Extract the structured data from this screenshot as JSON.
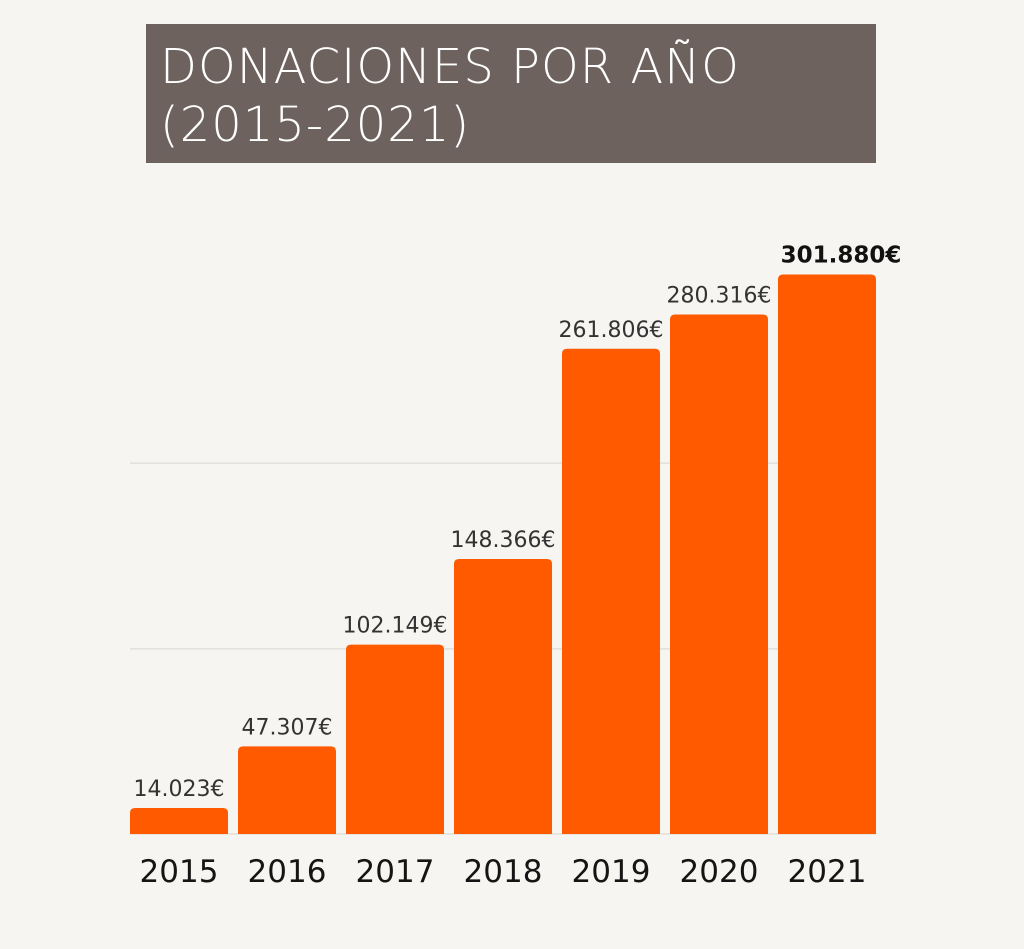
{
  "chart_data": {
    "type": "bar",
    "title_lines": [
      "DONACIONES POR AÑO",
      "(2015-2021)"
    ],
    "categories": [
      "2015",
      "2016",
      "2017",
      "2018",
      "2019",
      "2020",
      "2021"
    ],
    "values": [
      14023,
      47307,
      102149,
      148366,
      261806,
      280316,
      301880
    ],
    "value_labels": [
      "14.023€",
      "47.307€",
      "102.149€",
      "148.366€",
      "261.806€",
      "280.316€",
      "301.880€"
    ],
    "highlight_index": 6,
    "ylim": [
      0,
      300000
    ],
    "gridlines": true,
    "bar_color": "#ff5a00",
    "title_bg_color": "#6d625d"
  }
}
